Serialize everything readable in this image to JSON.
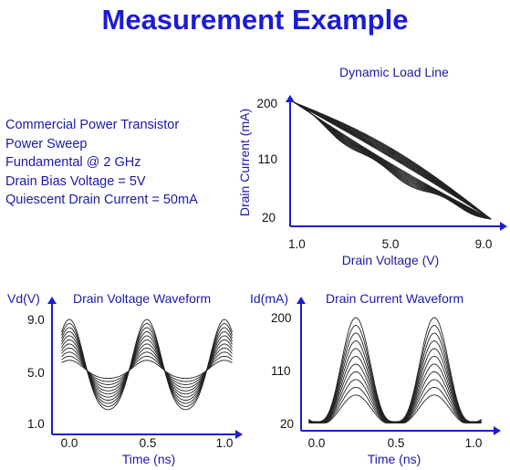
{
  "title": "Measurement Example",
  "info_lines": [
    "Commercial Power Transistor",
    "Power Sweep",
    "Fundamental @ 2 GHz",
    "Drain Bias Voltage = 5V",
    "Quiescent Drain Current = 50mA"
  ],
  "colors": {
    "title": "#1c1cd2",
    "text": "#1a1aa8",
    "axis": "#1c1cd2",
    "trace": "#222222"
  },
  "chart_data": [
    {
      "type": "line",
      "title": "Dynamic Load Line",
      "xlabel": "Drain Voltage (V)",
      "ylabel": "Drain Current (mA)",
      "xlim": [
        1.0,
        9.0
      ],
      "ylim": [
        20,
        200
      ],
      "x_ticks": [
        "1.0",
        "5.0",
        "9.0"
      ],
      "y_ticks": [
        "20",
        "110",
        "200"
      ],
      "curve_family": "load line loops, 11 drive levels, from (1.0, 200) to (9.0, 20)"
    },
    {
      "type": "line",
      "title": "Drain Voltage Waveform",
      "xlabel": "Time (ns)",
      "ylabel": "Vd(V)",
      "xlim": [
        0.0,
        1.0
      ],
      "ylim": [
        1.0,
        9.0
      ],
      "x_ticks": [
        "0.0",
        "0.5",
        "1.0"
      ],
      "y_ticks": [
        "1.0",
        "5.0",
        "9.0"
      ],
      "period_ns": 0.5,
      "curve_family": "11 traces centred at 5.0 V, peaks near 0.0/0.5/1.0 ns, amplitude up to 4 V"
    },
    {
      "type": "line",
      "title": "Drain Current Waveform",
      "xlabel": "Time (ns)",
      "ylabel": "Id(mA)",
      "xlim": [
        0.0,
        1.0
      ],
      "ylim": [
        20,
        200
      ],
      "x_ticks": [
        "0.0",
        "0.5",
        "1.0"
      ],
      "y_ticks": [
        "20",
        "110",
        "200"
      ],
      "period_ns": 0.5,
      "curve_family": "11 traces, peaks near 0.25/0.75 ns rising to 200 mA, troughs near 20 mA"
    }
  ]
}
